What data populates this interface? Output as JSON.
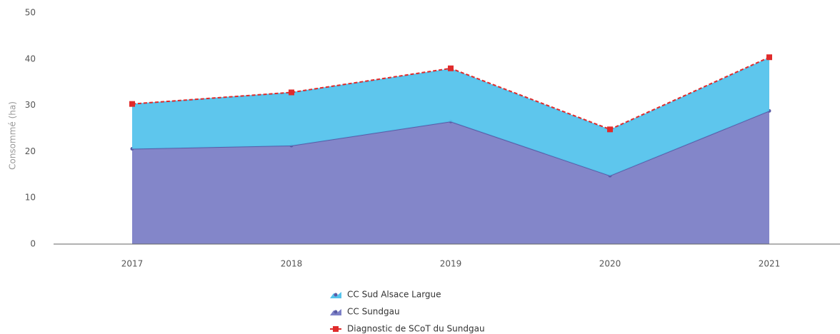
{
  "chart_data": {
    "type": "area",
    "y_label": "Consommé (ha)",
    "categories": [
      "2017",
      "2018",
      "2019",
      "2020",
      "2021"
    ],
    "stacked": true,
    "series": [
      {
        "name": "CC Sud Alsace Largue",
        "type": "area",
        "color": "#55c3ec",
        "values": [
          9.6,
          11.4,
          11.3,
          9.8,
          11.4
        ]
      },
      {
        "name": "CC Sundgau",
        "type": "area",
        "color": "#7c80c6",
        "values": [
          20.6,
          21.3,
          26.5,
          14.8,
          28.8
        ]
      },
      {
        "name": "Diagnostic de SCoT du Sundgau",
        "type": "line",
        "color": "#e02b2b",
        "values": [
          30.3,
          32.8,
          38.0,
          24.8,
          40.4
        ]
      }
    ],
    "ylim": [
      0,
      50
    ],
    "yticks": [
      0,
      10,
      20,
      30,
      40,
      50
    ],
    "grid": false,
    "legend": "bottom"
  }
}
